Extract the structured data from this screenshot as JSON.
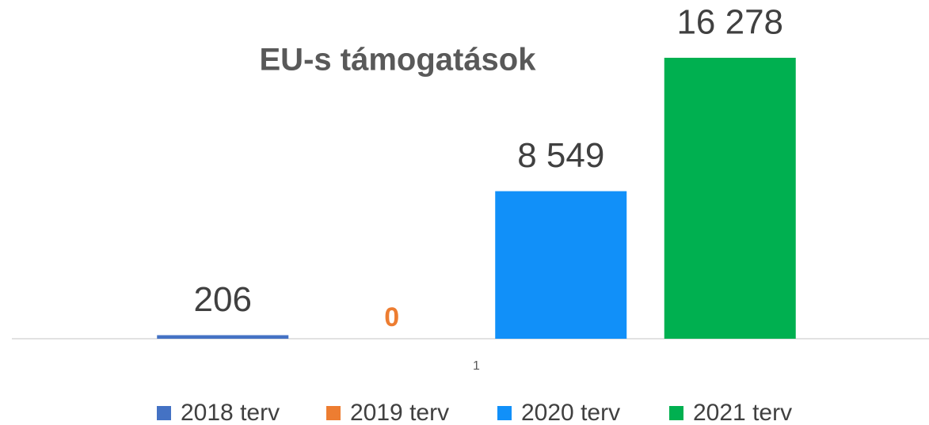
{
  "chart_data": {
    "type": "bar",
    "title": "EU-s támogatások",
    "categories": [
      "1"
    ],
    "series": [
      {
        "name": "2018 terv",
        "color": "#4472c4",
        "label_color": "#404040",
        "values": [
          206
        ],
        "value_labels": [
          "206"
        ]
      },
      {
        "name": "2019 terv",
        "color": "#ed7d31",
        "label_color": "#ed7d31",
        "values": [
          0
        ],
        "value_labels": [
          "0"
        ]
      },
      {
        "name": "2020 terv",
        "color": "#1190f9",
        "label_color": "#404040",
        "values": [
          8549
        ],
        "value_labels": [
          "8 549"
        ]
      },
      {
        "name": "2021 terv",
        "color": "#00b050",
        "label_color": "#404040",
        "values": [
          16278
        ],
        "value_labels": [
          "16 278"
        ]
      }
    ],
    "legend": "bottom"
  }
}
